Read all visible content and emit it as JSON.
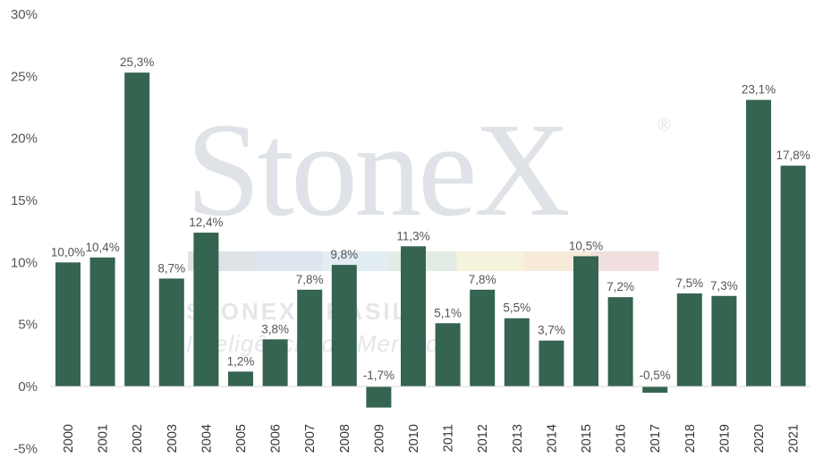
{
  "watermark": {
    "brand": "StoneX",
    "registered": "®",
    "line1": "STONEX BRASIL",
    "line2": "Inteligência de Mercado",
    "stripe_colors": [
      "#dfe3e6",
      "#dde6ee",
      "#e3edf4",
      "#e2ece4",
      "#f6f3dc",
      "#f8ead9",
      "#f1dfe0"
    ]
  },
  "chart_data": {
    "type": "bar",
    "categories": [
      "2000",
      "2001",
      "2002",
      "2003",
      "2004",
      "2005",
      "2006",
      "2007",
      "2008",
      "2009",
      "2010",
      "2011",
      "2012",
      "2013",
      "2014",
      "2015",
      "2016",
      "2017",
      "2018",
      "2019",
      "2020",
      "2021"
    ],
    "values": [
      10.0,
      10.4,
      25.3,
      8.7,
      12.4,
      1.2,
      3.8,
      7.8,
      9.8,
      -1.7,
      11.3,
      5.1,
      7.8,
      5.5,
      3.7,
      10.5,
      7.2,
      -0.5,
      7.5,
      7.3,
      23.1,
      17.8
    ],
    "data_labels": [
      "10,0%",
      "10,4%",
      "25,3%",
      "8,7%",
      "12,4%",
      "1,2%",
      "3,8%",
      "7,8%",
      "9,8%",
      "-1,7%",
      "11,3%",
      "5,1%",
      "7,8%",
      "5,5%",
      "3,7%",
      "10,5%",
      "7,2%",
      "-0,5%",
      "7,5%",
      "7,3%",
      "23,1%",
      "17,8%"
    ],
    "y_ticks": [
      30,
      25,
      20,
      15,
      10,
      5,
      0,
      -5
    ],
    "y_tick_labels": [
      "30%",
      "25%",
      "20%",
      "15%",
      "10%",
      "5%",
      "0%",
      "-5%"
    ],
    "ylim": [
      -5,
      30
    ],
    "title": "",
    "xlabel": "",
    "ylabel": "",
    "grid": false,
    "legend": "none",
    "bar_color": "#356450",
    "axis_color": "#d9d9d9"
  }
}
